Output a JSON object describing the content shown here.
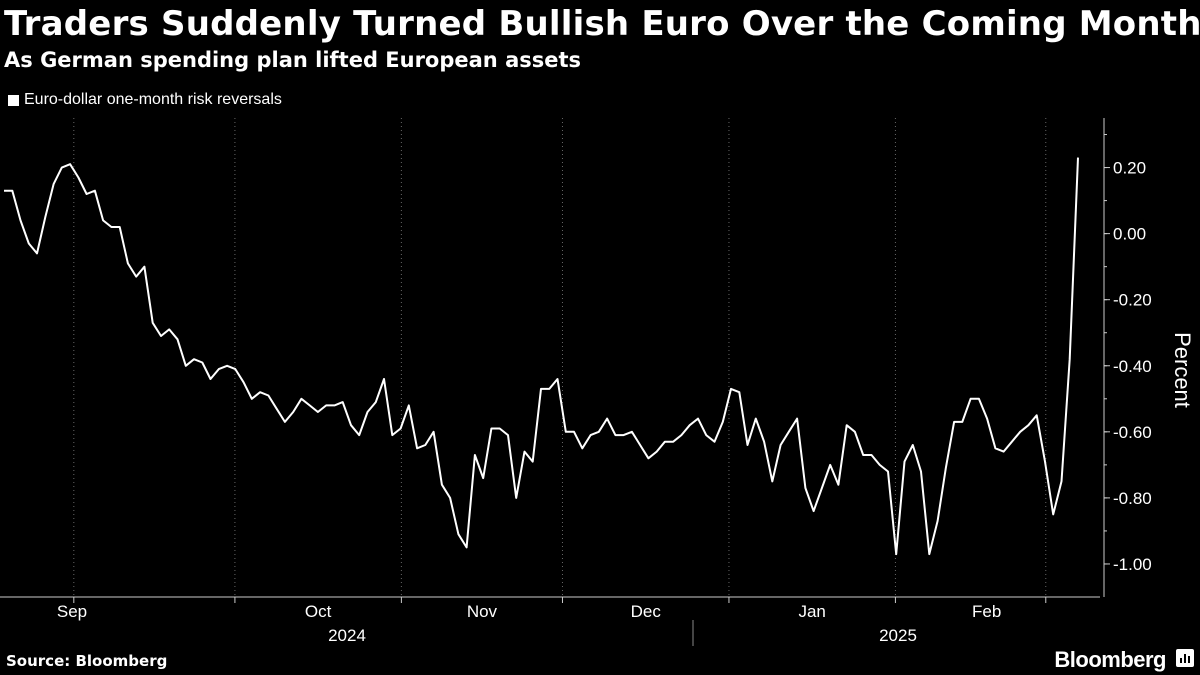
{
  "header": {
    "title": "Traders Suddenly Turned Bullish Euro Over the Coming Month",
    "subtitle": "As German spending plan lifted European assets"
  },
  "legend": {
    "label": "Euro-dollar one-month risk reversals"
  },
  "footer": {
    "source": "Source: Bloomberg",
    "brand": "Bloomberg"
  },
  "icons": {
    "brand_logo": "bloomberg-bar-chart-icon"
  },
  "colors": {
    "background": "#000000",
    "line": "#ffffff",
    "grid": "#666666"
  },
  "chart_data": {
    "type": "line",
    "ylabel": "Percent",
    "ylim": [
      -1.1,
      0.35
    ],
    "yticks": [
      0.2,
      0.0,
      -0.2,
      -0.4,
      -0.6,
      -0.8,
      -1.0
    ],
    "ytick_labels": [
      "0.20",
      "0.00",
      "-0.20",
      "-0.40",
      "-0.60",
      "-0.80",
      "-1.00"
    ],
    "y_axis_side": "right",
    "grid": "vertical dotted at month boundaries",
    "month_labels": [
      "Sep",
      "Oct",
      "Nov",
      "Dec",
      "Jan",
      "Feb"
    ],
    "year_labels": [
      "2024",
      "2025"
    ],
    "x_start": "2024-08-19",
    "x_end": "2025-03-07",
    "series": [
      {
        "values": [
          0.13,
          0.13,
          0.04,
          -0.03,
          -0.06,
          0.05,
          0.15,
          0.2,
          0.21,
          0.17,
          0.12,
          0.13,
          0.04,
          0.02,
          0.02,
          -0.09,
          -0.13,
          -0.1,
          -0.27,
          -0.31,
          -0.29,
          -0.32,
          -0.4,
          -0.38,
          -0.39,
          -0.44,
          -0.41,
          -0.4,
          -0.41,
          -0.45,
          -0.5,
          -0.48,
          -0.49,
          -0.53,
          -0.57,
          -0.54,
          -0.5,
          -0.52,
          -0.54,
          -0.52,
          -0.52,
          -0.51,
          -0.58,
          -0.61,
          -0.54,
          -0.51,
          -0.44,
          -0.61,
          -0.59,
          -0.52,
          -0.65,
          -0.64,
          -0.6,
          -0.76,
          -0.8,
          -0.91,
          -0.95,
          -0.67,
          -0.74,
          -0.59,
          -0.59,
          -0.61,
          -0.8,
          -0.66,
          -0.69,
          -0.47,
          -0.47,
          -0.44,
          -0.6,
          -0.6,
          -0.65,
          -0.61,
          -0.6,
          -0.56,
          -0.61,
          -0.61,
          -0.6,
          -0.64,
          -0.68,
          -0.66,
          -0.63,
          -0.63,
          -0.61,
          -0.58,
          -0.56,
          -0.61,
          -0.63,
          -0.57,
          -0.47,
          -0.48,
          -0.64,
          -0.56,
          -0.63,
          -0.75,
          -0.64,
          -0.6,
          -0.56,
          -0.77,
          -0.84,
          -0.77,
          -0.7,
          -0.76,
          -0.58,
          -0.6,
          -0.67,
          -0.67,
          -0.7,
          -0.72,
          -0.97,
          -0.69,
          -0.64,
          -0.72,
          -0.97,
          -0.87,
          -0.71,
          -0.57,
          -0.57,
          -0.5,
          -0.5,
          -0.56,
          -0.65,
          -0.66,
          -0.63,
          -0.6,
          -0.58,
          -0.55,
          -0.69,
          -0.85,
          -0.75,
          -0.38,
          0.23
        ]
      }
    ]
  }
}
